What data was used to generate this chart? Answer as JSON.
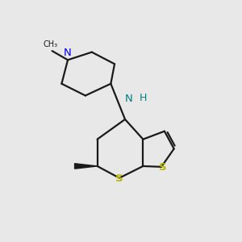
{
  "background_color": "#e8e8e8",
  "bond_color": "#1a1a1a",
  "N_color": "#0000ee",
  "NH_color": "#008080",
  "S_color": "#b8b800",
  "fig_width": 3.0,
  "fig_height": 3.0,
  "xlim": [
    0,
    10
  ],
  "ylim": [
    0,
    10
  ],
  "lw": 1.6
}
